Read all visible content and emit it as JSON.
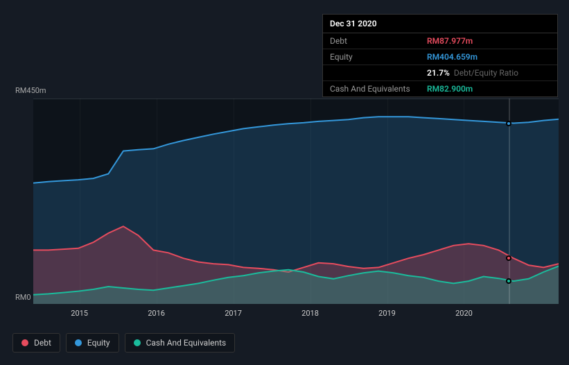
{
  "chart": {
    "type": "area",
    "background": "#151b24",
    "plot_background": "#0d131a",
    "grid_color": "rgba(255,255,255,0.04)",
    "font_size": 11,
    "ylim": [
      0,
      450
    ],
    "ytick_max_label": "RM450m",
    "ytick_min_label": "RM0",
    "xticks": [
      "2015",
      "2016",
      "2017",
      "2018",
      "2019",
      "2020"
    ],
    "xtick_positions": [
      0.0879,
      0.2343,
      0.3807,
      0.5271,
      0.6735,
      0.8199
    ],
    "series": {
      "debt": {
        "label": "Debt",
        "color": "#e74c5e",
        "fill": "rgba(231,76,94,0.28)",
        "data": [
          118,
          118,
          120,
          122,
          135,
          155,
          170,
          150,
          118,
          112,
          100,
          92,
          88,
          86,
          80,
          78,
          75,
          70,
          80,
          90,
          88,
          82,
          78,
          80,
          90,
          100,
          108,
          118,
          128,
          132,
          128,
          118,
          100,
          85,
          80,
          87.977
        ]
      },
      "equity": {
        "label": "Equity",
        "color": "#3498db",
        "fill": "rgba(52,152,219,0.22)",
        "data": [
          265,
          268,
          270,
          272,
          275,
          285,
          335,
          338,
          340,
          350,
          358,
          365,
          372,
          378,
          384,
          388,
          392,
          395,
          397,
          400,
          402,
          404,
          408,
          410,
          410,
          410,
          408,
          406,
          404,
          402,
          400,
          398,
          396,
          398,
          402,
          404.659
        ]
      },
      "cash": {
        "label": "Cash And Equivalents",
        "color": "#1abc9c",
        "fill": "rgba(26,188,156,0.28)",
        "data": [
          20,
          22,
          25,
          28,
          32,
          38,
          35,
          32,
          30,
          35,
          40,
          45,
          52,
          58,
          62,
          68,
          72,
          75,
          70,
          60,
          55,
          62,
          68,
          72,
          68,
          62,
          58,
          50,
          45,
          50,
          60,
          56,
          50,
          55,
          70,
          82.9
        ]
      }
    }
  },
  "tooltip": {
    "date": "Dec 31 2020",
    "rows": [
      {
        "label": "Debt",
        "value": "RM87.977m",
        "color": "#e74c5e"
      },
      {
        "label": "Equity",
        "value": "RM404.659m",
        "color": "#3498db"
      },
      {
        "label": "",
        "value": "21.7%",
        "ratio": "Debt/Equity Ratio",
        "color": "#fff"
      },
      {
        "label": "Cash And Equivalents",
        "value": "RM82.900m",
        "color": "#1abc9c"
      }
    ],
    "position_x": 0.905
  },
  "legend": [
    {
      "label": "Debt",
      "color": "#e74c5e"
    },
    {
      "label": "Equity",
      "color": "#3498db"
    },
    {
      "label": "Cash And Equivalents",
      "color": "#1abc9c"
    }
  ]
}
